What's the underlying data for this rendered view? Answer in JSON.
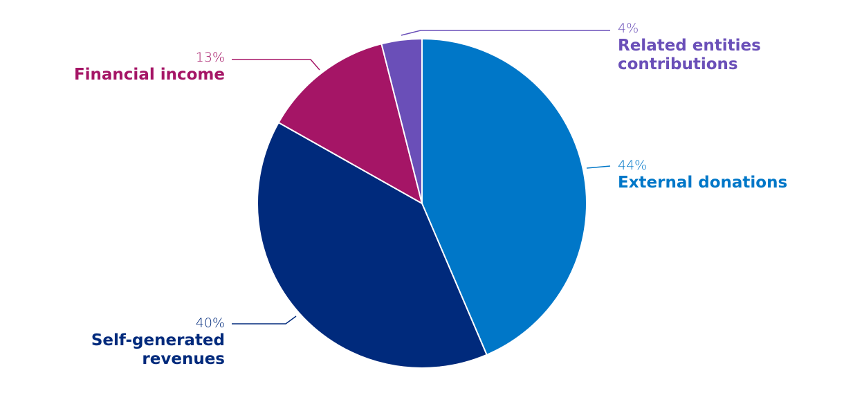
{
  "chart_data": {
    "type": "pie",
    "categories": [
      "External donations",
      "Self-generated revenues",
      "Financial income",
      "Related entities contributions"
    ],
    "values": [
      44,
      40,
      13,
      4
    ],
    "value_labels": [
      "44%",
      "40%",
      "13%",
      "4%"
    ],
    "colors": [
      "#0077c8",
      "#002a7c",
      "#a51566",
      "#6a4fb8"
    ],
    "start_angle": 0,
    "direction": "clockwise"
  }
}
